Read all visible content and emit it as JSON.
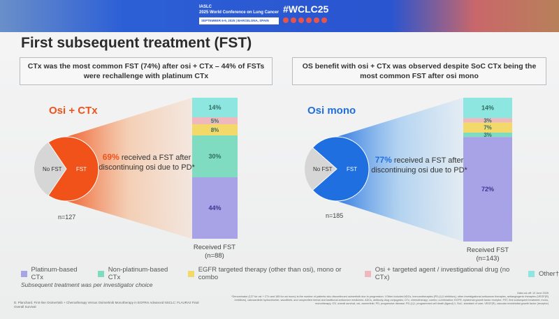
{
  "banner": {
    "org": "IASLC",
    "conference": "2025 World Conference on Lung Cancer",
    "dates": "SEPTEMBER 6-9, 2025 | BARCELONA, SPAIN",
    "hashtag": "#WCLC25"
  },
  "title": "First subsequent treatment (FST)",
  "callouts": [
    "CTx was the most common FST (74%) after osi + CTx – 44% of FSTs were rechallenge with platinum CTx",
    "OS benefit with osi + CTx was observed despite SoC CTx being the most common FST after osi mono"
  ],
  "colors": {
    "orange": "#f0521a",
    "blue": "#1f6fe0",
    "grey": "#d6d6d6",
    "platinum": "#a8a2e6",
    "nonplatinum": "#7fdcc0",
    "egfr": "#f3d86a",
    "osi_targeted": "#efb8bd",
    "other": "#8ee6e0"
  },
  "chart_data": [
    {
      "type": "pie+stacked-bar",
      "arm": "Osi + CTx",
      "pie": {
        "labels": [
          "FST",
          "No FST"
        ],
        "values": [
          69,
          31
        ]
      },
      "n_total": "n=127",
      "received_text": "69% received a FST after discontinuing osi due to PD*",
      "received_pct": "69%",
      "received_rest": "received a FST after discontinuing osi due to PD*",
      "bar_label": "Received FST",
      "bar_n": "(n=88)",
      "segments": [
        {
          "name": "Platinum-based CTx",
          "value": 44,
          "label": "44%"
        },
        {
          "name": "Non-platinum-based CTx",
          "value": 30,
          "label": "30%"
        },
        {
          "name": "EGFR targeted therapy (other than osi), mono or combo",
          "value": 8,
          "label": "8%"
        },
        {
          "name": "Osi + targeted agent / investigational drug (no CTx)",
          "value": 5,
          "label": "5%"
        },
        {
          "name": "Other",
          "value": 14,
          "label": "14%"
        }
      ]
    },
    {
      "type": "pie+stacked-bar",
      "arm": "Osi mono",
      "pie": {
        "labels": [
          "FST",
          "No FST"
        ],
        "values": [
          77,
          23
        ]
      },
      "n_total": "n=185",
      "received_pct": "77%",
      "received_rest": "received a FST after discontinuing osi due to PD*",
      "bar_label": "Received FST",
      "bar_n": "(n=143)",
      "segments": [
        {
          "name": "Platinum-based CTx",
          "value": 72,
          "label": "72%"
        },
        {
          "name": "Non-platinum-based CTx",
          "value": 3,
          "label": "3%"
        },
        {
          "name": "EGFR targeted therapy (other than osi), mono or combo",
          "value": 7,
          "label": "7%"
        },
        {
          "name": "Osi + targeted agent / investigational drug (no CTx)",
          "value": 3,
          "label": "3%"
        },
        {
          "name": "Other",
          "value": 14,
          "label": "14%"
        }
      ]
    }
  ],
  "pie_labels": {
    "fst": "FST",
    "nofst": "No FST"
  },
  "legend": [
    "Platinum-based CTx",
    "Non-platinum-based CTx",
    "EGFR targeted therapy (other than osi), mono or combo",
    "Osi + targeted agent / investigational drug (no CTx)",
    "Other†"
  ],
  "subtext": "Subsequent treatment was per investigator choice",
  "citation": "D. Planchard. First-line Osimertinib + Chemotherapy Versus Osimertinib Monotherapy in EGFRm Advanced NSCLC: FLAURA2 Final Overall Survival",
  "footnote": {
    "cutoff": "Data cut-off: 12 June 2025",
    "text": "*Denominator (127 for osi + CTx and 185 for osi mono) is the number of patients who discontinued osimertinib due to progression. †Other included ADCs, immunotherapies (PD-(L)1 inhibitors), other investigational anticancer therapies, antiangiogenic therapies (VEGF(R) inhibitors), cabozantinib hydrochloride, savolitinib, and unspecified herbal and traditional anticancer medicines. ADCs, antibody-drug conjugates; CTx, chemotherapy; combo, combination; EGFR, epidermal growth factor receptor; FST, first subsequent treatment; mono, monotherapy; OS, overall survival; osi, osimertinib; PD, progressive disease; PD-(L)1, programmed cell death (ligand) 1; SoC, standard of care; VEGF(R), vascular endothelial growth factor (receptor)"
  }
}
